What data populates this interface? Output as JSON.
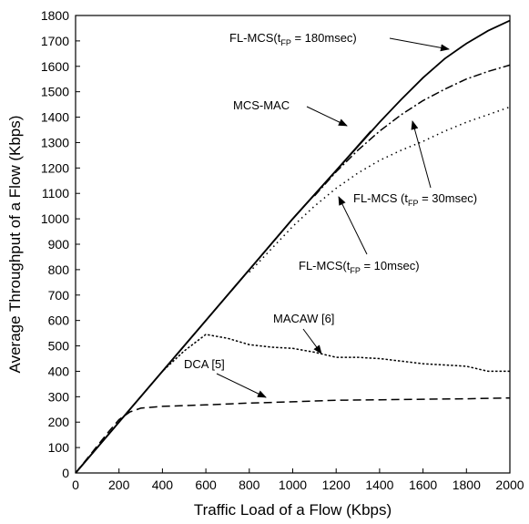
{
  "chart_data": {
    "type": "line",
    "title": "",
    "xlabel": "Traffic Load of a Flow (Kbps)",
    "ylabel": "Average Throughput of a Flow (Kbps)",
    "xlim": [
      0,
      2000
    ],
    "ylim": [
      0,
      1800
    ],
    "xticks": [
      0,
      200,
      400,
      600,
      800,
      1000,
      1200,
      1400,
      1600,
      1800,
      2000
    ],
    "yticks": [
      0,
      100,
      200,
      300,
      400,
      500,
      600,
      700,
      800,
      900,
      1000,
      1100,
      1200,
      1300,
      1400,
      1500,
      1600,
      1700,
      1800
    ],
    "grid": false,
    "legend": "none",
    "series": [
      {
        "key": "fl180",
        "style": "solid",
        "x": [
          0,
          200,
          400,
          600,
          800,
          1000,
          1200,
          1400,
          1500,
          1600,
          1700,
          1800,
          1900,
          2000
        ],
        "y": [
          0,
          200,
          400,
          600,
          800,
          1000,
          1190,
          1380,
          1470,
          1555,
          1630,
          1690,
          1740,
          1780
        ]
      },
      {
        "key": "mcsmac",
        "style": "solid",
        "x": [
          0,
          200,
          400,
          600,
          800,
          1000,
          1200,
          1360
        ],
        "y": [
          0,
          200,
          400,
          600,
          800,
          1000,
          1190,
          1345
        ]
      },
      {
        "key": "fl30",
        "style": "dashdot",
        "x": [
          1100,
          1200,
          1300,
          1400,
          1500,
          1600,
          1700,
          1800,
          1900,
          2000
        ],
        "y": [
          1090,
          1185,
          1270,
          1345,
          1410,
          1465,
          1510,
          1550,
          1580,
          1605
        ]
      },
      {
        "key": "fl10",
        "style": "dotted",
        "x": [
          800,
          900,
          1000,
          1100,
          1200,
          1300,
          1400,
          1500,
          1600,
          1700,
          1800,
          1900,
          2000
        ],
        "y": [
          790,
          880,
          970,
          1050,
          1120,
          1180,
          1230,
          1270,
          1305,
          1345,
          1380,
          1410,
          1440
        ]
      },
      {
        "key": "macaw",
        "style": "dotted-dense",
        "x": [
          0,
          200,
          400,
          500,
          600,
          700,
          800,
          900,
          1000,
          1100,
          1200,
          1300,
          1400,
          1500,
          1600,
          1700,
          1800,
          1850,
          1900,
          2000
        ],
        "y": [
          0,
          200,
          400,
          480,
          545,
          530,
          505,
          495,
          490,
          475,
          455,
          455,
          450,
          440,
          430,
          425,
          420,
          410,
          400,
          400
        ]
      },
      {
        "key": "dca",
        "style": "dashed",
        "x": [
          0,
          150,
          200,
          250,
          300,
          400,
          600,
          800,
          1000,
          1200,
          1400,
          1600,
          1800,
          2000
        ],
        "y": [
          0,
          160,
          210,
          240,
          255,
          262,
          268,
          275,
          280,
          286,
          288,
          290,
          292,
          295
        ]
      }
    ],
    "annotations": [
      {
        "key": "fl180",
        "main": "FL-MCS(t",
        "sub": "FP",
        "rest": " = 180msec)"
      },
      {
        "key": "mcsmac",
        "main": "MCS-MAC",
        "sub": "",
        "rest": ""
      },
      {
        "key": "fl30",
        "main": "FL-MCS (t",
        "sub": "FP",
        "rest": " = 30msec)"
      },
      {
        "key": "fl10",
        "main": "FL-MCS(t",
        "sub": "FP",
        "rest": " = 10msec)"
      },
      {
        "key": "macaw",
        "main": "MACAW [6]",
        "sub": "",
        "rest": ""
      },
      {
        "key": "dca",
        "main": "DCA [5]",
        "sub": "",
        "rest": ""
      }
    ]
  }
}
